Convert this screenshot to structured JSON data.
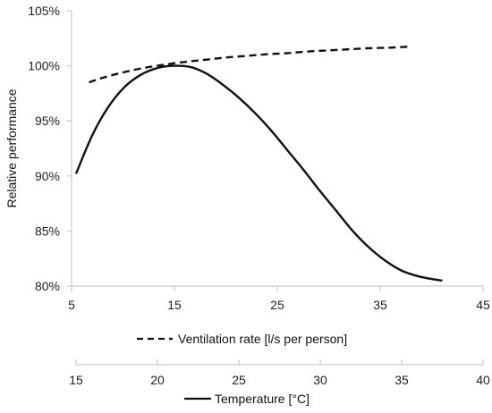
{
  "chart_data": {
    "type": "line",
    "title": "",
    "ylabel": "Relative performance",
    "ylim": [
      80,
      105
    ],
    "y_ticks": [
      "80%",
      "85%",
      "90%",
      "95%",
      "100%",
      "105%"
    ],
    "y_tick_values": [
      80,
      85,
      90,
      95,
      100,
      105
    ],
    "grid": false,
    "x_axes": [
      {
        "id": "ventilation",
        "range": [
          5,
          45
        ],
        "ticks": [
          "5",
          "15",
          "25",
          "35",
          "45"
        ],
        "tick_values": [
          5,
          15,
          25,
          35,
          45
        ]
      },
      {
        "id": "temperature",
        "range": [
          15,
          40
        ],
        "ticks": [
          "15",
          "20",
          "25",
          "30",
          "35",
          "40"
        ],
        "tick_values": [
          15,
          20,
          25,
          30,
          35,
          40
        ]
      }
    ],
    "series": [
      {
        "name": "Ventilation rate [l/s per person]",
        "x_axis": "ventilation",
        "style": "dashed",
        "x": [
          6.7,
          8,
          10,
          12,
          14,
          16,
          18,
          20,
          22,
          24,
          26,
          28,
          30,
          32,
          34,
          36,
          38
        ],
        "y": [
          98.5,
          98.9,
          99.4,
          99.8,
          100.1,
          100.35,
          100.55,
          100.75,
          100.9,
          101.05,
          101.15,
          101.3,
          101.4,
          101.5,
          101.6,
          101.65,
          101.75
        ]
      },
      {
        "name": "Temperature [°C]",
        "x_axis": "temperature",
        "style": "solid",
        "x": [
          15,
          16,
          17,
          18,
          19,
          20,
          21,
          22,
          23,
          24,
          25,
          26,
          27,
          28,
          29,
          30,
          31,
          32,
          33,
          34,
          35,
          36,
          37,
          37.5
        ],
        "y": [
          90.2,
          93.7,
          96.3,
          98.1,
          99.2,
          99.8,
          100.0,
          99.9,
          99.3,
          98.3,
          97.1,
          95.7,
          94.1,
          92.3,
          90.5,
          88.6,
          86.8,
          85.0,
          83.5,
          82.3,
          81.4,
          80.9,
          80.6,
          80.5
        ]
      }
    ],
    "legend_placement": "below each x-axis"
  }
}
